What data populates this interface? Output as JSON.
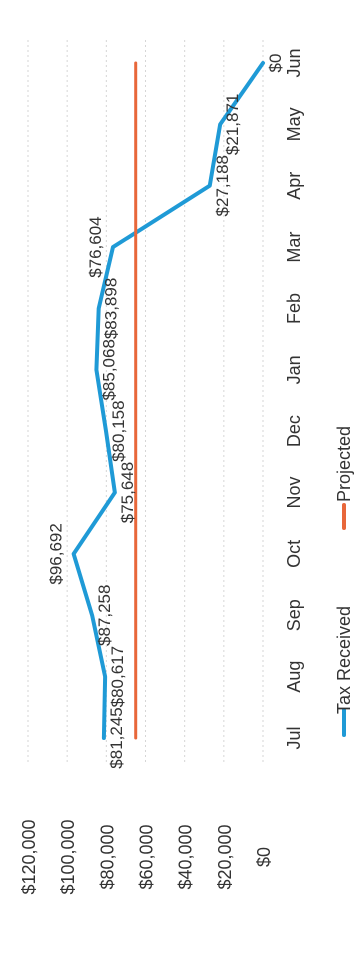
{
  "chart_data": {
    "type": "line",
    "categories": [
      "Jul",
      "Aug",
      "Sep",
      "Oct",
      "Nov",
      "Dec",
      "Jan",
      "Feb",
      "Mar",
      "Apr",
      "May",
      "Jun"
    ],
    "series": [
      {
        "name": "Tax Received",
        "values": [
          81245,
          80617,
          87258,
          96692,
          75648,
          80158,
          85068,
          83898,
          76604,
          27188,
          21871,
          0
        ],
        "labels": [
          "$81,245",
          "$80,617",
          "$87,258",
          "$96,692",
          "$75,648",
          "$80,158",
          "$85,068",
          "$83,898",
          "$76,604",
          "$27,188",
          "$21,871",
          "$0"
        ],
        "color": "#1f9ad6"
      },
      {
        "name": "Projected",
        "values": [
          65000,
          65000,
          65000,
          65000,
          65000,
          65000,
          65000,
          65000,
          65000,
          65000,
          65000,
          65000
        ],
        "color": "#e8673a"
      }
    ],
    "y_ticks": [
      "$0",
      "$20,000",
      "$40,000",
      "$60,000",
      "$80,000",
      "$100,000",
      "$120,000"
    ],
    "ylim": [
      0,
      120000
    ],
    "grid": true,
    "legend": "bottom",
    "orientation": "rotated 90° clockwise"
  }
}
